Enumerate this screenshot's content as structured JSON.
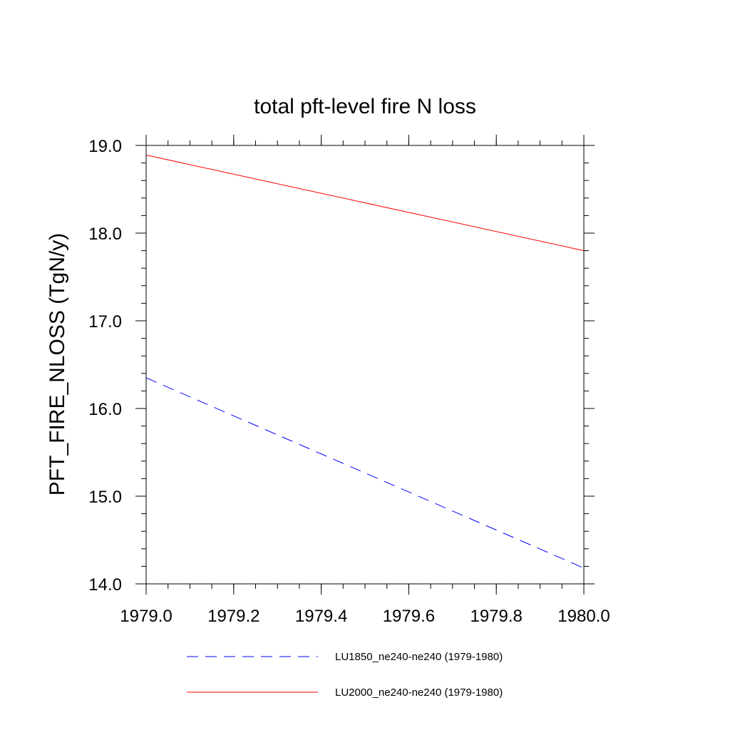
{
  "chart_data": {
    "type": "line",
    "title": "total pft-level fire N loss",
    "xlabel": "",
    "ylabel": "PFT_FIRE_NLOSS  (TgN/y)",
    "xlim": [
      1979.0,
      1980.0
    ],
    "ylim": [
      14.0,
      19.0
    ],
    "xticks": [
      "1979.0",
      "1979.2",
      "1979.4",
      "1979.6",
      "1979.8",
      "1980.0"
    ],
    "yticks": [
      "14.0",
      "15.0",
      "16.0",
      "17.0",
      "18.0",
      "19.0"
    ],
    "grid": false,
    "legend_position": "bottom",
    "series": [
      {
        "name": "LU1850_ne240-ne240 (1979-1980)",
        "color": "#0000ff",
        "dash": "dashed",
        "x": [
          1979.0,
          1980.0
        ],
        "y": [
          16.35,
          14.18
        ]
      },
      {
        "name": "LU2000_ne240-ne240 (1979-1980)",
        "color": "#ff0000",
        "dash": "solid",
        "x": [
          1979.0,
          1980.0
        ],
        "y": [
          18.89,
          17.8
        ]
      }
    ]
  }
}
